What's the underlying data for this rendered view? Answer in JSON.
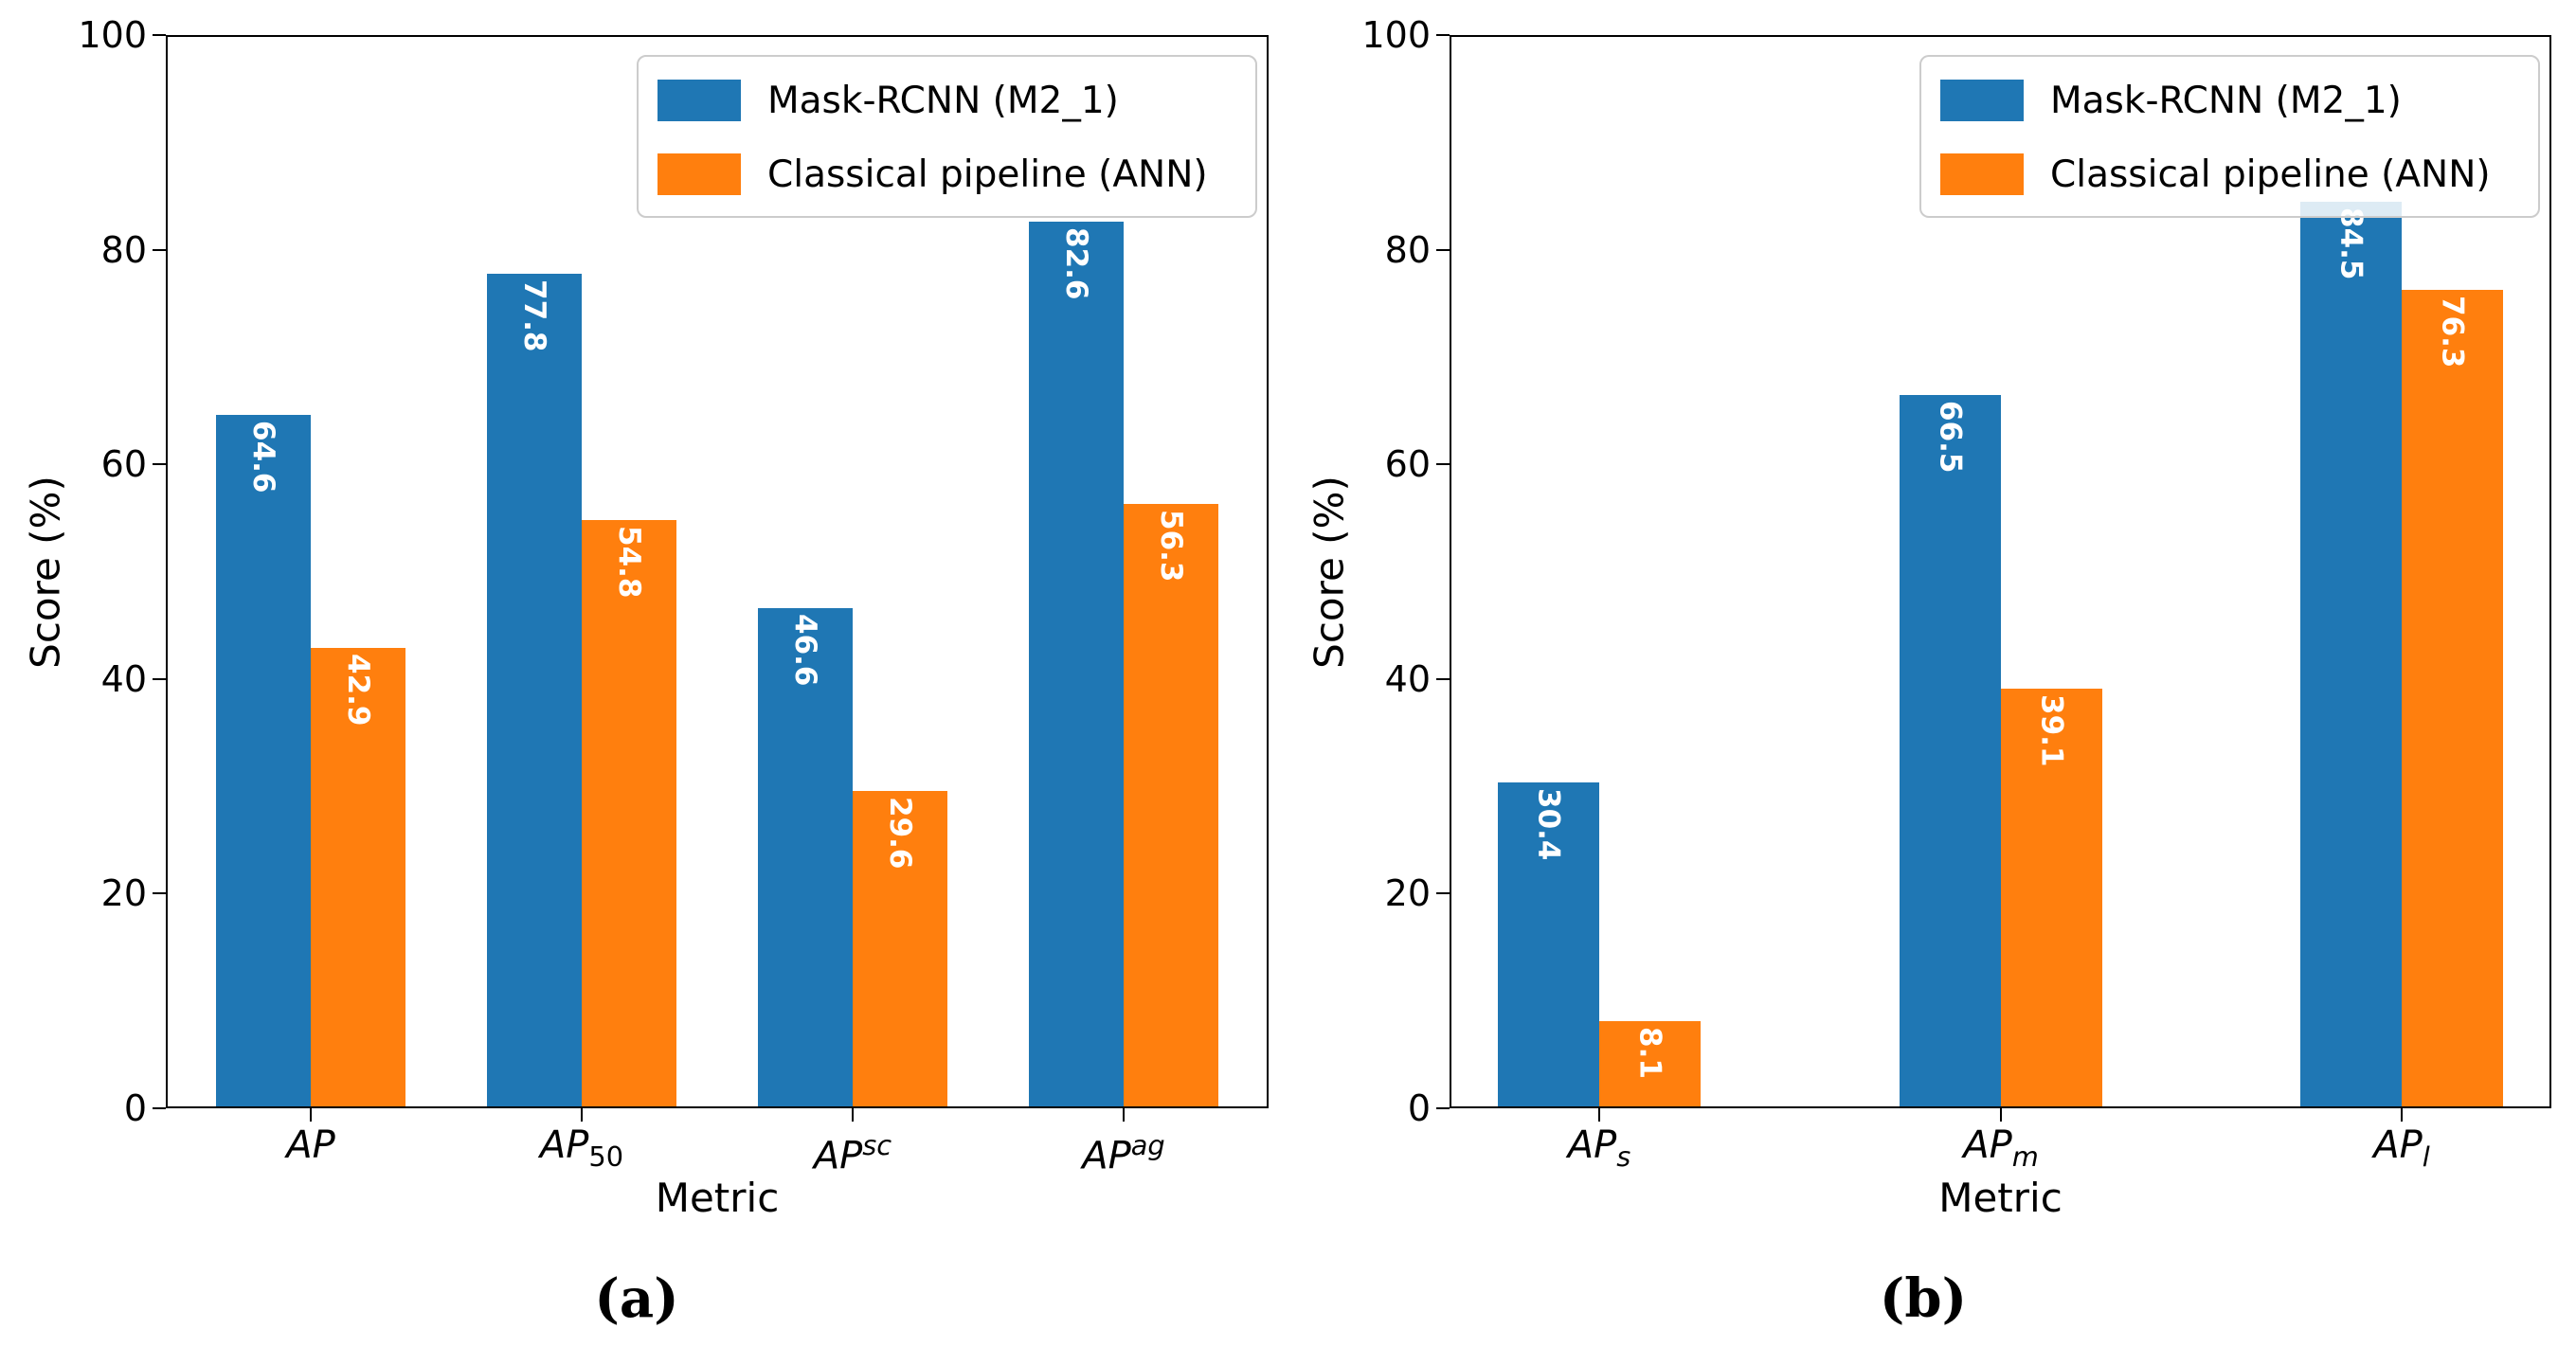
{
  "figure": {
    "background": "#ffffff",
    "captions": {
      "a": "(a)",
      "b": "(b)"
    }
  },
  "legend": {
    "entries": [
      {
        "label": "Mask-RCNN (M2_1)",
        "color": "#1f77b4"
      },
      {
        "label": "Classical pipeline (ANN)",
        "color": "#ff7f0e"
      }
    ]
  },
  "chart_data": [
    {
      "type": "bar",
      "panel": "a",
      "title": "",
      "xlabel": "Metric",
      "ylabel": "Score (%)",
      "ylim": [
        0,
        100
      ],
      "yticks": [
        0,
        20,
        40,
        60,
        80,
        100
      ],
      "grid": false,
      "legend_position": "upper right",
      "bar_value_labels": true,
      "categories": [
        {
          "base": "AP"
        },
        {
          "base": "AP",
          "sub": "50"
        },
        {
          "base": "AP",
          "sup": "sc"
        },
        {
          "base": "AP",
          "sup": "ag"
        }
      ],
      "series": [
        {
          "name": "Mask-RCNN (M2_1)",
          "color": "#1f77b4",
          "values": [
            64.6,
            77.8,
            46.6,
            82.6
          ]
        },
        {
          "name": "Classical pipeline (ANN)",
          "color": "#ff7f0e",
          "values": [
            42.9,
            54.8,
            29.6,
            56.3
          ]
        }
      ]
    },
    {
      "type": "bar",
      "panel": "b",
      "title": "",
      "xlabel": "Metric",
      "ylabel": "Score (%)",
      "ylim": [
        0,
        100
      ],
      "yticks": [
        0,
        20,
        40,
        60,
        80,
        100
      ],
      "grid": false,
      "legend_position": "upper right",
      "bar_value_labels": true,
      "categories": [
        {
          "base": "AP",
          "sub": "s"
        },
        {
          "base": "AP",
          "sub": "m"
        },
        {
          "base": "AP",
          "sub": "l"
        }
      ],
      "series": [
        {
          "name": "Mask-RCNN (M2_1)",
          "color": "#1f77b4",
          "values": [
            30.4,
            66.5,
            84.5
          ]
        },
        {
          "name": "Classical pipeline (ANN)",
          "color": "#ff7f0e",
          "values": [
            8.1,
            39.1,
            76.3
          ]
        }
      ]
    }
  ]
}
